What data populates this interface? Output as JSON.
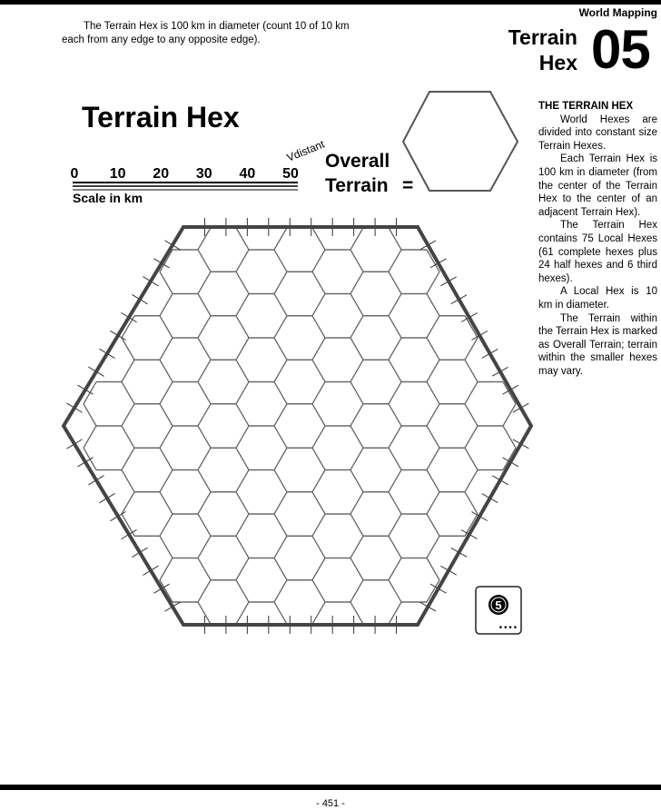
{
  "header": {
    "section_label": "World Mapping",
    "chapter_title_line1": "Terrain",
    "chapter_title_line2": "Hex",
    "chapter_number": "05"
  },
  "intro_text": "The Terrain Hex is 100 km in diameter (count 10 of 10 km each from any edge to any opposite edge).",
  "figure": {
    "title": "Terrain Hex",
    "scale_ticks": [
      "0",
      "10",
      "20",
      "30",
      "40",
      "50"
    ],
    "scale_label": "Scale in km",
    "handwritten_note": "Vdistant",
    "overall_terrain_line1": "Overall",
    "overall_terrain_line2": "Terrain",
    "equals": "=",
    "badge_number": "5",
    "badge_dots": "••••"
  },
  "sidebar": {
    "heading": "THE TERRAIN HEX",
    "paragraphs": [
      "World Hexes are divided into constant size Terrain Hexes.",
      "Each Terrain Hex is 100 km in diameter (from the center of the Terrain Hex to the center of an adjacent Terrain Hex).",
      "The Terrain Hex contains 75 Local Hexes (61 complete hexes plus 24 half hexes and 6 third hexes).",
      "A Local Hex is 10 km in diameter.",
      "The Terrain within the Terrain Hex is marked as Overall Terrain; terrain within the smaller hexes may vary."
    ]
  },
  "footer": {
    "page_number": "- 451 -"
  }
}
